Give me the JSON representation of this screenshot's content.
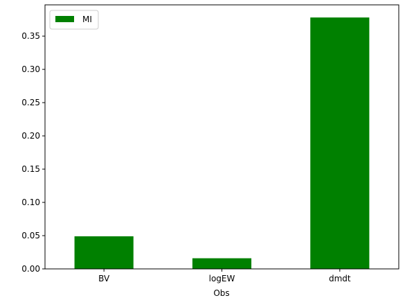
{
  "chart_data": {
    "type": "bar",
    "categories": [
      "BV",
      "logEW",
      "dmdt"
    ],
    "series": [
      {
        "name": "MI",
        "values": [
          0.049,
          0.016,
          0.378
        ]
      }
    ],
    "xlabel": "Obs",
    "ylabel": "",
    "ylim": [
      0,
      0.397
    ],
    "yticks": [
      0.0,
      0.05,
      0.1,
      0.15,
      0.2,
      0.25,
      0.3,
      0.35
    ],
    "ytick_labels": [
      "0.00",
      "0.05",
      "0.10",
      "0.15",
      "0.20",
      "0.25",
      "0.30",
      "0.35"
    ],
    "grid": false,
    "legend_position": "top-left",
    "colors": {
      "bar": "#008000",
      "axis": "#000000"
    }
  }
}
